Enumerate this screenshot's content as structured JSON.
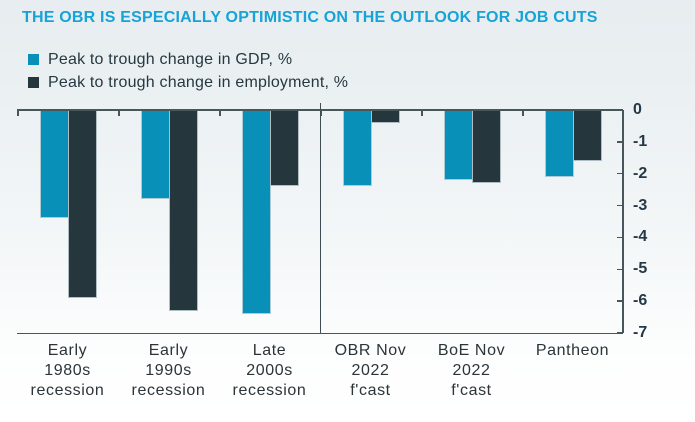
{
  "title": "THE OBR IS ESPECIALLY OPTIMISTIC ON THE OUTLOOK FOR JOB CUTS",
  "colors": {
    "title": "#17a2d8",
    "gdp": "#0890b8",
    "employment": "#25373c",
    "axis": "#46565b",
    "text": "#253841"
  },
  "legend": {
    "items": [
      {
        "label": "Peak to trough change in GDP, %"
      },
      {
        "label": "Peak to trough change in employment, %"
      }
    ]
  },
  "chart_data": {
    "type": "bar",
    "title": "THE OBR IS ESPECIALLY OPTIMISTIC ON THE OUTLOOK FOR JOB CUTS",
    "categories": [
      "Early 1980s recession",
      "Early 1990s recession",
      "Late 2000s recession",
      "OBR Nov 2022 f'cast",
      "BoE Nov 2022 f'cast",
      "Pantheon"
    ],
    "category_lines": [
      [
        "Early",
        "1980s",
        "recession"
      ],
      [
        "Early",
        "1990s",
        "recession"
      ],
      [
        "Late",
        "2000s",
        "recession"
      ],
      [
        "OBR Nov",
        "2022",
        "f'cast"
      ],
      [
        "BoE Nov",
        "2022",
        "f'cast"
      ],
      [
        "Pantheon"
      ]
    ],
    "series": [
      {
        "name": "Peak to trough change in GDP, %",
        "color": "#0890b8",
        "values": [
          -3.4,
          -2.8,
          -6.4,
          -2.4,
          -2.2,
          -2.1
        ]
      },
      {
        "name": "Peak to trough change in employment, %",
        "color": "#25373c",
        "values": [
          -5.9,
          -6.3,
          -2.4,
          -0.4,
          -2.3,
          -1.6
        ]
      }
    ],
    "ylabel": "",
    "xlabel": "",
    "ylim": [
      -7,
      0
    ],
    "yticks": [
      0,
      -1,
      -2,
      -3,
      -4,
      -5,
      -6,
      -7
    ],
    "yaxis_side": "right",
    "grid": false,
    "legend_position": "top-left",
    "divider_after_category_index": 2
  }
}
